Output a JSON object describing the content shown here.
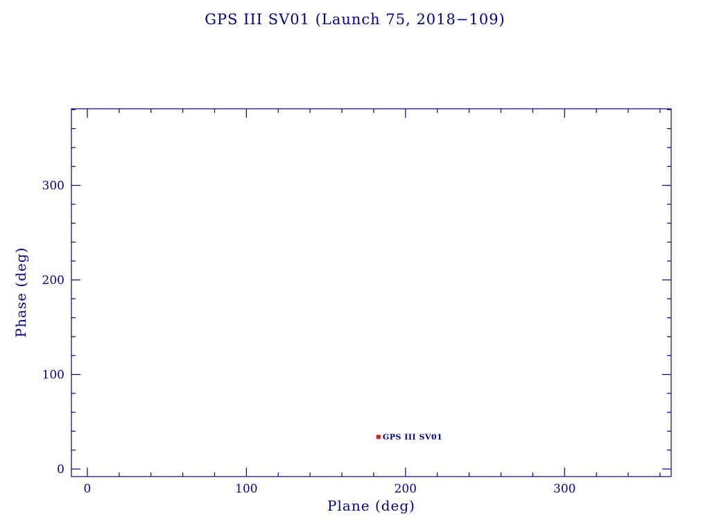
{
  "page": {
    "background": "#ffffff"
  },
  "chart_data": {
    "type": "scatter",
    "title": "GPS III SV01 (Launch 75, 2018−109)",
    "xlabel": "Plane (deg)",
    "ylabel": "Phase (deg)",
    "xlim": [
      -10,
      367
    ],
    "ylim": [
      -8,
      381
    ],
    "x_major_ticks": [
      0,
      100,
      200,
      300
    ],
    "y_major_ticks": [
      0,
      100,
      200,
      300
    ],
    "x_major_tick_labels": [
      "0",
      "100",
      "200",
      "300"
    ],
    "y_major_tick_labels": [
      "0",
      "100",
      "200",
      "300"
    ],
    "minor_tick_step": 20,
    "grid": false,
    "legend_position": "none",
    "axis_color": "#00008b",
    "text_color": "#00008b",
    "marker_color": "#cc2222",
    "points": [
      {
        "x": 183,
        "y": 34,
        "label": "GPS III SV01",
        "marker": "square"
      }
    ]
  }
}
